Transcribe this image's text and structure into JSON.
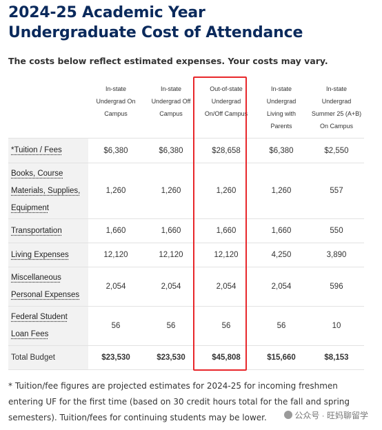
{
  "title_line1": "2024-25 Academic Year",
  "title_line2": "Undergraduate Cost of Attendance",
  "subtitle": "The costs below reflect estimated expenses.  Your costs may vary.",
  "columns": [
    {
      "l1": "In-state",
      "l2": "Undergrad On",
      "l3": "Campus"
    },
    {
      "l1": "In-state",
      "l2": "Undergrad Off",
      "l3": "Campus"
    },
    {
      "l1": "Out-of-state",
      "l2": "Undergrad",
      "l3": "On/Off Campus"
    },
    {
      "l1": "In-state",
      "l2": "Undergrad",
      "l3": "Living with",
      "l4": "Parents"
    },
    {
      "l1": "In-state",
      "l2": "Undergrad",
      "l3": "Summer 25 (A+B)",
      "l4": "On Campus"
    }
  ],
  "rows": [
    {
      "lines": [
        "*Tuition / Fees"
      ],
      "values": [
        "$6,380",
        "$6,380",
        "$28,658",
        "$6,380",
        "$2,550"
      ]
    },
    {
      "lines": [
        "Books, Course",
        "Materials, Supplies,",
        "Equipment"
      ],
      "values": [
        "1,260",
        "1,260",
        "1,260",
        "1,260",
        "557"
      ]
    },
    {
      "lines": [
        "Transportation"
      ],
      "values": [
        "1,660",
        "1,660",
        "1,660",
        "1,660",
        "550"
      ]
    },
    {
      "lines": [
        "Living Expenses"
      ],
      "values": [
        "12,120",
        "12,120",
        "12,120",
        "4,250",
        "3,890"
      ]
    },
    {
      "lines": [
        "Miscellaneous",
        "Personal Expenses"
      ],
      "values": [
        "2,054",
        "2,054",
        "2,054",
        "2,054",
        "596"
      ]
    },
    {
      "lines": [
        "Federal Student",
        "Loan Fees"
      ],
      "values": [
        "56",
        "56",
        "56",
        "56",
        "10"
      ]
    }
  ],
  "total": {
    "label": "Total Budget",
    "values": [
      "$23,530",
      "$23,530",
      "$45,808",
      "$15,660",
      "$8,153"
    ]
  },
  "footnote": "* Tuition/fee figures are projected estimates for 2024-25 for incoming freshmen entering UF for the first time (based on 30 credit hours total for the fall and spring semesters). Tuition/fees for continuing students may be lower.",
  "watermark": "公众号 · 旺妈聊留学",
  "highlight_color": "#e8262a",
  "title_color": "#0b2a5c"
}
